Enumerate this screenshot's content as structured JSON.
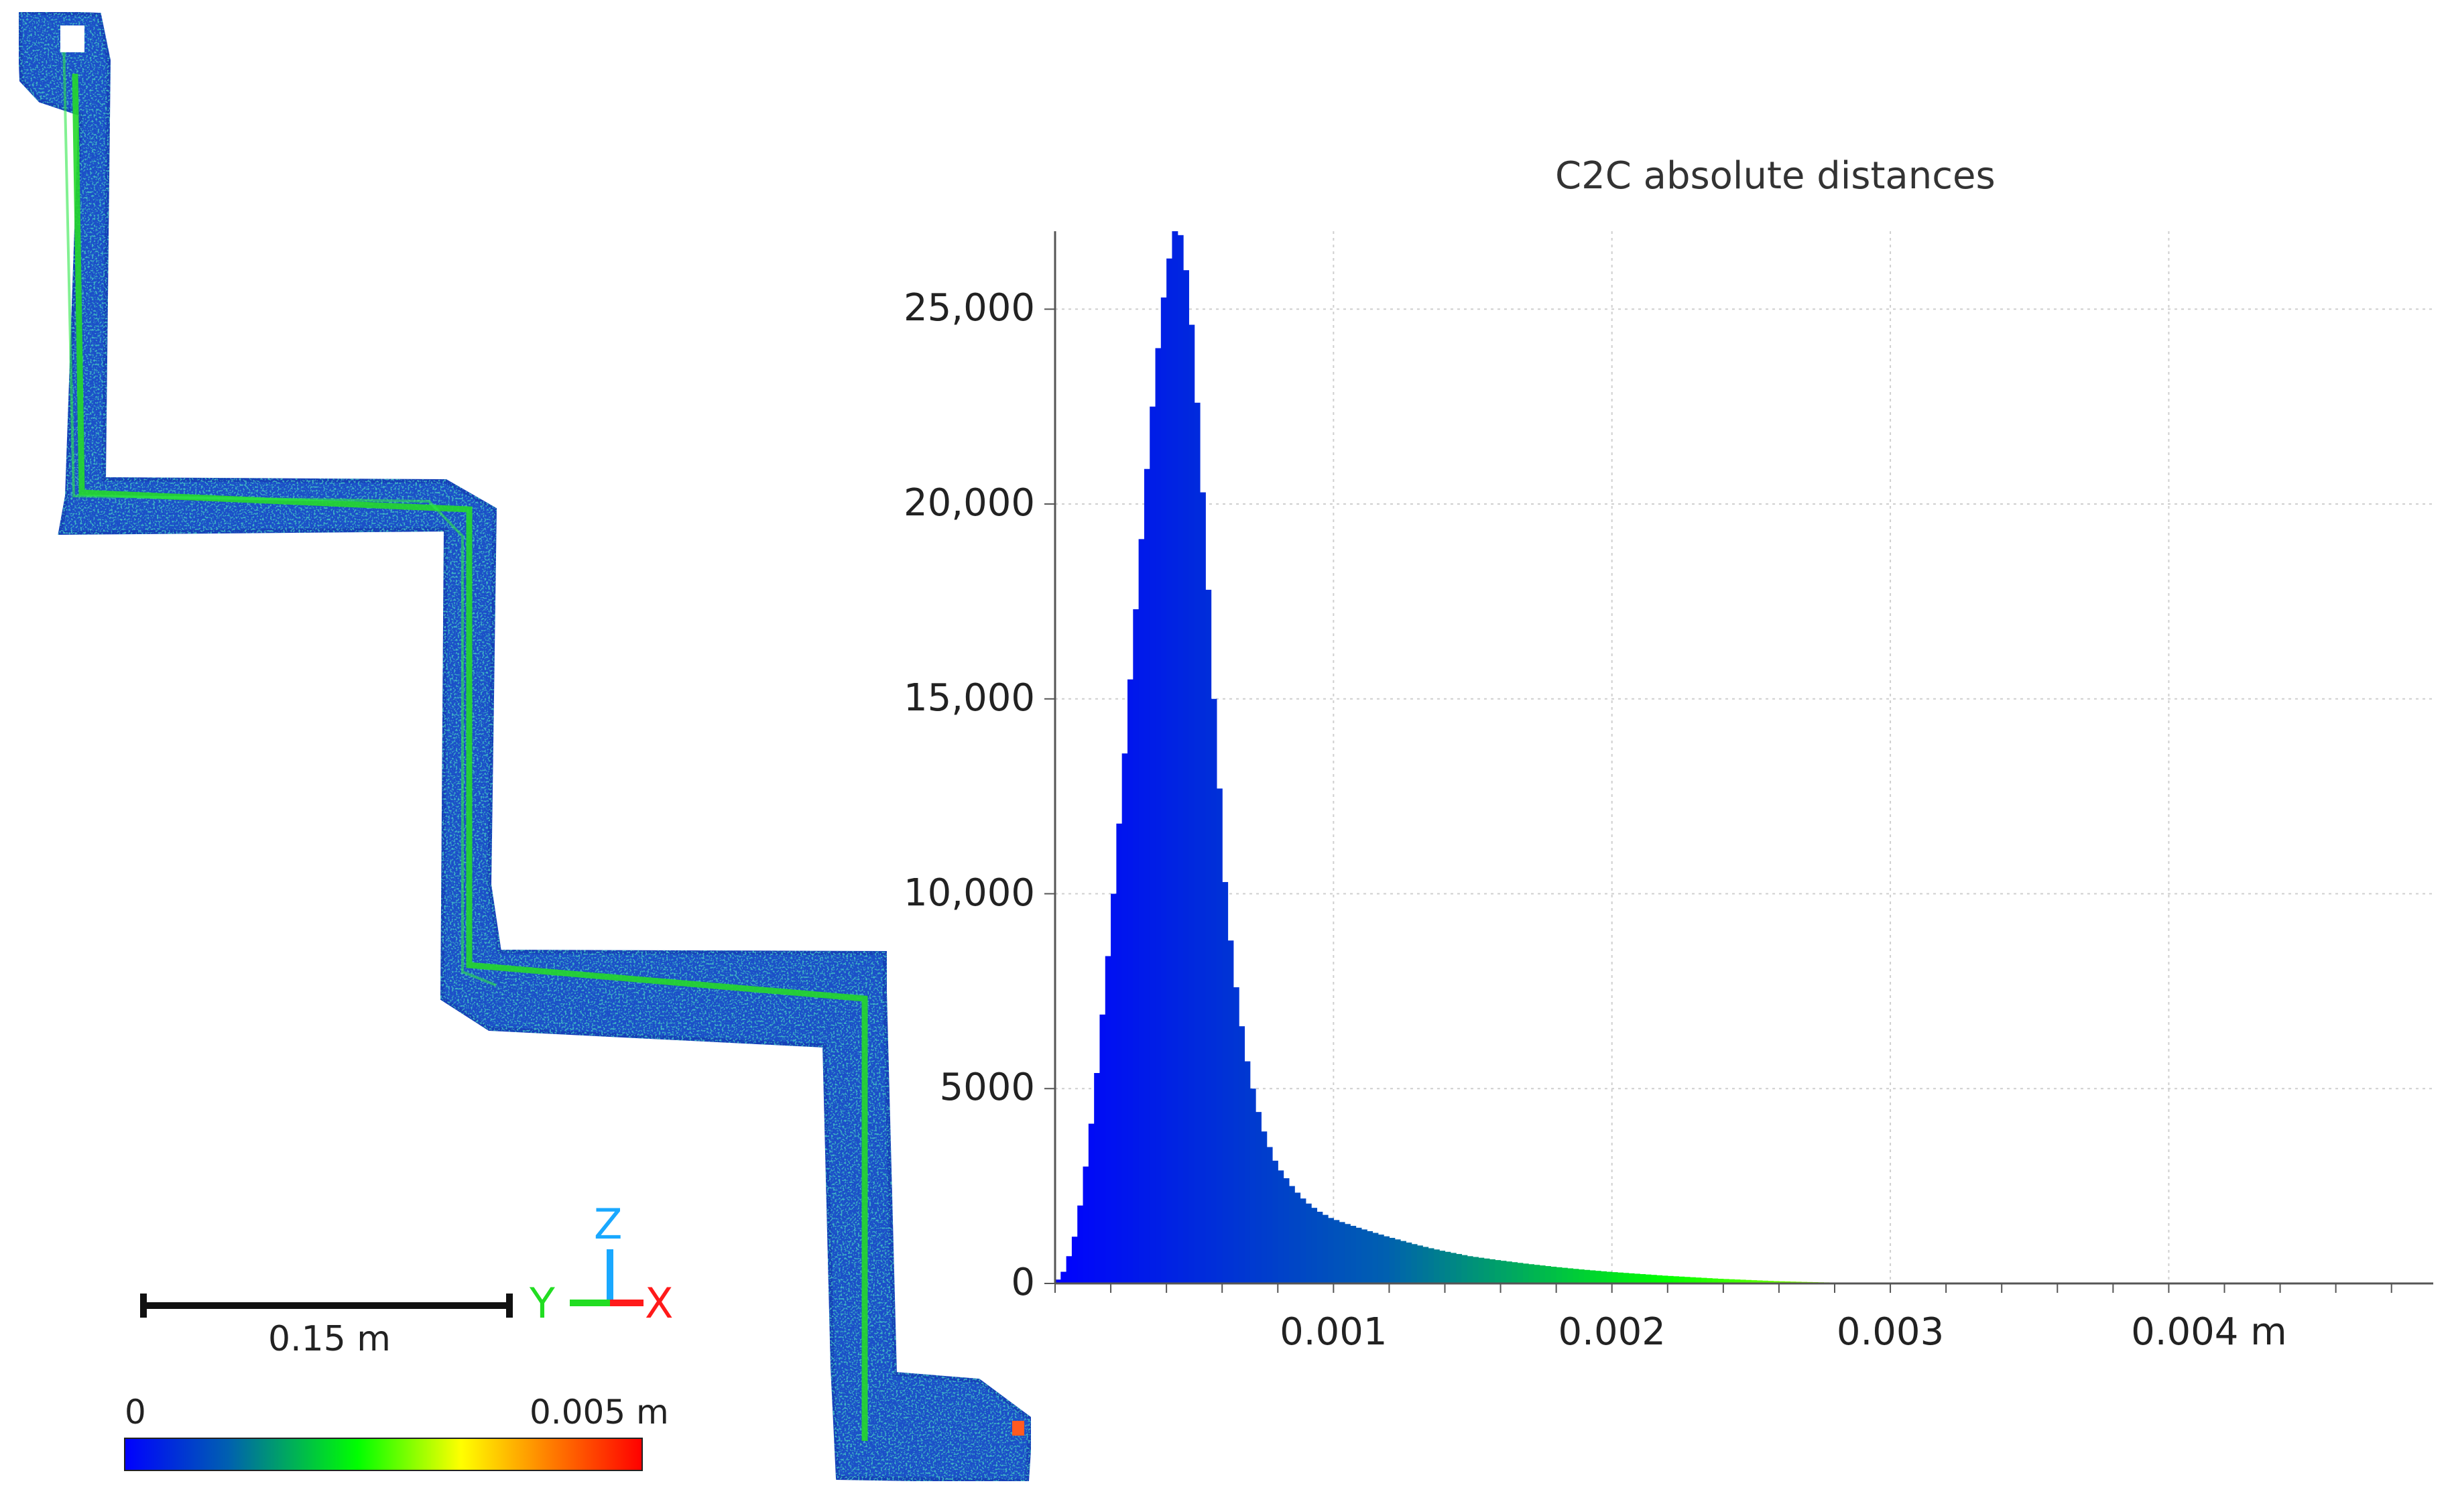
{
  "viewer": {
    "scale_bar_label": "0.15 m",
    "color_scale": {
      "min_label": "0",
      "max_label": "0.005 m",
      "colors": [
        "#0000ff",
        "#0060b0",
        "#00ff00",
        "#ffff00",
        "#ff7f00",
        "#ff0000"
      ]
    },
    "axes": {
      "x": "X",
      "y": "Y",
      "z": "Z"
    },
    "colors": {
      "cloud_base": "#1c4fc8",
      "cloud_ridge": "#26d82a",
      "x_axis": "#ff1a1a",
      "y_axis": "#22dd22",
      "z_axis": "#19a8ff"
    }
  },
  "histogram": {
    "title": "C2C absolute distances",
    "x_unit_label": "m"
  },
  "chart_data": {
    "type": "bar",
    "title": "C2C absolute distances",
    "xlabel": "",
    "ylabel": "",
    "xlim": [
      0.0,
      0.00495
    ],
    "ylim": [
      0,
      27000
    ],
    "grid": true,
    "x_ticks": [
      {
        "value": 0.001,
        "label": "0.001"
      },
      {
        "value": 0.002,
        "label": "0.002"
      },
      {
        "value": 0.003,
        "label": "0.003"
      },
      {
        "value": 0.004,
        "label": "0.004 m"
      }
    ],
    "y_ticks": [
      {
        "value": 0,
        "label": "0"
      },
      {
        "value": 5000,
        "label": "5000"
      },
      {
        "value": 10000,
        "label": "10,000"
      },
      {
        "value": 15000,
        "label": "15,000"
      },
      {
        "value": 20000,
        "label": "20,000"
      },
      {
        "value": 25000,
        "label": "25,000"
      }
    ],
    "bin_width": 2e-05,
    "bins": [
      {
        "x": 2e-05,
        "y": 100
      },
      {
        "x": 4e-05,
        "y": 300
      },
      {
        "x": 6e-05,
        "y": 700
      },
      {
        "x": 8e-05,
        "y": 1200
      },
      {
        "x": 0.0001,
        "y": 2000
      },
      {
        "x": 0.00012,
        "y": 3000
      },
      {
        "x": 0.00014,
        "y": 4100
      },
      {
        "x": 0.00016,
        "y": 5400
      },
      {
        "x": 0.00018,
        "y": 6900
      },
      {
        "x": 0.0002,
        "y": 8400
      },
      {
        "x": 0.00022,
        "y": 10000
      },
      {
        "x": 0.00024,
        "y": 11800
      },
      {
        "x": 0.00026,
        "y": 13600
      },
      {
        "x": 0.00028,
        "y": 15500
      },
      {
        "x": 0.0003,
        "y": 17300
      },
      {
        "x": 0.00032,
        "y": 19100
      },
      {
        "x": 0.00034,
        "y": 20900
      },
      {
        "x": 0.00036,
        "y": 22500
      },
      {
        "x": 0.00038,
        "y": 24000
      },
      {
        "x": 0.0004,
        "y": 25300
      },
      {
        "x": 0.00042,
        "y": 26300
      },
      {
        "x": 0.00044,
        "y": 27000
      },
      {
        "x": 0.00046,
        "y": 26900
      },
      {
        "x": 0.00048,
        "y": 26000
      },
      {
        "x": 0.0005,
        "y": 24600
      },
      {
        "x": 0.00052,
        "y": 22600
      },
      {
        "x": 0.00054,
        "y": 20300
      },
      {
        "x": 0.00056,
        "y": 17800
      },
      {
        "x": 0.00058,
        "y": 15000
      },
      {
        "x": 0.0006,
        "y": 12700
      },
      {
        "x": 0.00062,
        "y": 10300
      },
      {
        "x": 0.00064,
        "y": 8800
      },
      {
        "x": 0.00066,
        "y": 7600
      },
      {
        "x": 0.00068,
        "y": 6600
      },
      {
        "x": 0.0007,
        "y": 5700
      },
      {
        "x": 0.00072,
        "y": 5000
      },
      {
        "x": 0.00074,
        "y": 4400
      },
      {
        "x": 0.00076,
        "y": 3900
      },
      {
        "x": 0.00078,
        "y": 3500
      },
      {
        "x": 0.0008,
        "y": 3150
      },
      {
        "x": 0.00082,
        "y": 2900
      },
      {
        "x": 0.00084,
        "y": 2700
      },
      {
        "x": 0.00086,
        "y": 2500
      },
      {
        "x": 0.00088,
        "y": 2330
      },
      {
        "x": 0.0009,
        "y": 2180
      },
      {
        "x": 0.00092,
        "y": 2050
      },
      {
        "x": 0.00094,
        "y": 1940
      },
      {
        "x": 0.00096,
        "y": 1840
      },
      {
        "x": 0.00098,
        "y": 1760
      },
      {
        "x": 0.001,
        "y": 1680
      },
      {
        "x": 0.00105,
        "y": 1550
      },
      {
        "x": 0.0011,
        "y": 1430
      },
      {
        "x": 0.00115,
        "y": 1320
      },
      {
        "x": 0.0012,
        "y": 1210
      },
      {
        "x": 0.00125,
        "y": 1110
      },
      {
        "x": 0.0013,
        "y": 1010
      },
      {
        "x": 0.00135,
        "y": 920
      },
      {
        "x": 0.0014,
        "y": 840
      },
      {
        "x": 0.00145,
        "y": 770
      },
      {
        "x": 0.0015,
        "y": 700
      },
      {
        "x": 0.0016,
        "y": 600
      },
      {
        "x": 0.0017,
        "y": 510
      },
      {
        "x": 0.0018,
        "y": 430
      },
      {
        "x": 0.0019,
        "y": 360
      },
      {
        "x": 0.002,
        "y": 300
      },
      {
        "x": 0.0021,
        "y": 250
      },
      {
        "x": 0.0022,
        "y": 200
      },
      {
        "x": 0.0023,
        "y": 160
      },
      {
        "x": 0.0024,
        "y": 120
      },
      {
        "x": 0.0025,
        "y": 90
      },
      {
        "x": 0.0026,
        "y": 60
      },
      {
        "x": 0.0027,
        "y": 40
      },
      {
        "x": 0.0028,
        "y": 25
      },
      {
        "x": 0.003,
        "y": 10
      },
      {
        "x": 0.0035,
        "y": 0
      }
    ]
  }
}
